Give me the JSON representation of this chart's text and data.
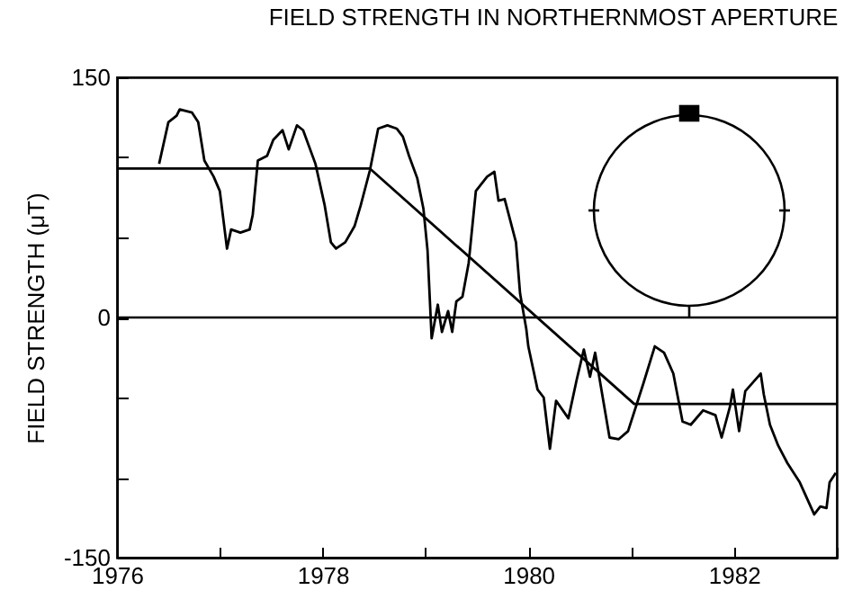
{
  "chart_data": {
    "type": "line",
    "title": "FIELD STRENGTH IN NORTHERNMOST APERTURE",
    "ylabel": "FIELD STRENGTH (μT)",
    "xlim": [
      1976,
      1983
    ],
    "xticks": [
      1976,
      {
        "value": 1977,
        "label": null
      },
      1978,
      {
        "value": 1979,
        "label": null
      },
      1980,
      {
        "value": 1981,
        "label": null
      },
      1982,
      {
        "value": 1983,
        "label": null
      }
    ],
    "ylim": [
      -150,
      150
    ],
    "yticks": [
      -150,
      {
        "value": -100,
        "label": null
      },
      {
        "value": -50,
        "label": null
      },
      0,
      {
        "value": 50,
        "label": null
      },
      {
        "value": 100,
        "label": null
      },
      150
    ],
    "grid": false,
    "legend": false,
    "marker": "none",
    "line_style": "solid",
    "ref_lines": [
      {
        "axis": "y",
        "value": 0
      }
    ],
    "series": [
      {
        "color": "#000000",
        "x": [
          1976.41,
          1976.5,
          1976.58,
          1976.61,
          1976.73,
          1976.79,
          1976.85,
          1976.94,
          1977.0,
          1977.07,
          1977.11,
          1977.2,
          1977.29,
          1977.32,
          1977.37,
          1977.46,
          1977.52,
          1977.61,
          1977.67,
          1977.75,
          1977.81,
          1977.93,
          1978.02,
          1978.08,
          1978.13,
          1978.22,
          1978.31,
          1978.37,
          1978.46,
          1978.54,
          1978.63,
          1978.72,
          1978.78,
          1978.84,
          1978.92,
          1978.98,
          1979.02,
          1979.06,
          1979.12,
          1979.16,
          1979.22,
          1979.26,
          1979.3,
          1979.36,
          1979.42,
          1979.49,
          1979.6,
          1979.67,
          1979.71,
          1979.77,
          1979.88,
          1979.92,
          1979.98,
          1980.0,
          1980.09,
          1980.15,
          1980.21,
          1980.27,
          1980.39,
          1980.47,
          1980.54,
          1980.6,
          1980.65,
          1980.79,
          1980.88,
          1980.97,
          1981.12,
          1981.23,
          1981.32,
          1981.41,
          1981.5,
          1981.58,
          1981.7,
          1981.82,
          1981.88,
          1981.96,
          1981.99,
          1982.05,
          1982.11,
          1982.26,
          1982.29,
          1982.35,
          1982.43,
          1982.52,
          1982.64,
          1982.78,
          1982.84,
          1982.9,
          1982.93,
          1982.99
        ],
        "values": [
          96,
          122,
          126,
          130,
          128,
          122,
          98,
          88,
          79,
          43,
          55,
          53,
          55,
          64,
          98,
          101,
          111,
          117,
          105,
          120,
          117,
          96,
          70,
          47,
          43,
          47,
          57,
          70,
          92,
          118,
          120,
          118,
          113,
          101,
          87,
          68,
          42,
          -13,
          8,
          -9,
          4,
          -9,
          10,
          13,
          34,
          79,
          88,
          91,
          73,
          74,
          47,
          15,
          -7,
          -18,
          -45,
          -50,
          -82,
          -52,
          -63,
          -39,
          -20,
          -37,
          -22,
          -75,
          -76,
          -71,
          -41,
          -18,
          -22,
          -35,
          -65,
          -67,
          -58,
          -61,
          -75,
          -56,
          -45,
          -71,
          -46,
          -35,
          -48,
          -67,
          -80,
          -91,
          -103,
          -123,
          -118,
          -119,
          -103,
          -97
        ]
      },
      {
        "color": "#000000",
        "x": [
          1976,
          1978.46,
          1981.03,
          1983
        ],
        "values": [
          93,
          93,
          -54,
          -54
        ]
      }
    ]
  }
}
